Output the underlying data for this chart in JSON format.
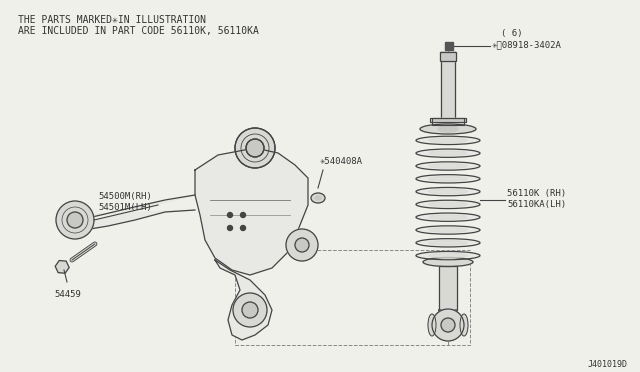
{
  "bg_color": "#f0f0eb",
  "line_color": "#444444",
  "text_color": "#333333",
  "fill_light": "#e8e8e4",
  "fill_mid": "#d8d8d4",
  "fill_dark": "#c8c8c4",
  "title_line1": "THE PARTS MARKED✳IN ILLUSTRATION",
  "title_line2": "ARE INCLUDED IN PART CODE 56110K, 56110KA",
  "label_54500M": "54500M(RH)",
  "label_54501M": "54501M(LH)",
  "label_54040BA": "✳540408A",
  "label_54459": "54459",
  "label_08918_a": "✳Ⓝ08918-3402A",
  "label_08918_b": "( 6)",
  "label_56110K": "56110K (RH)",
  "label_56110KA": "56110KA(LH)",
  "diagram_id": "J401019D",
  "fst": 7.0,
  "fsl": 6.5
}
